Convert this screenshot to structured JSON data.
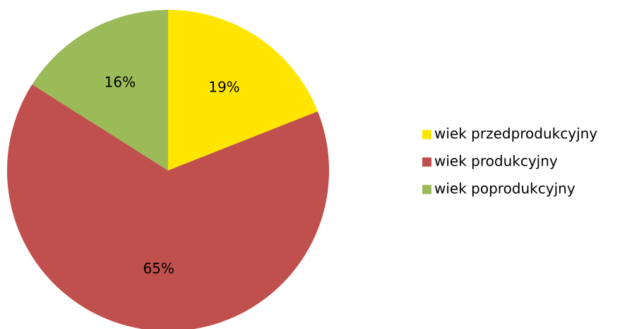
{
  "chart_data": {
    "type": "pie",
    "title": "",
    "categories": [
      "wiek przedprodukcyjny",
      "wiek produkcyjny",
      "wiek poprodukcyjny"
    ],
    "values": [
      19,
      65,
      16
    ],
    "value_labels": [
      "19%",
      "65%",
      "16%"
    ],
    "colors": [
      "#FFE500",
      "#C0504D",
      "#9BBB59"
    ],
    "legend_position": "right",
    "start": "top",
    "direction": "clockwise"
  }
}
